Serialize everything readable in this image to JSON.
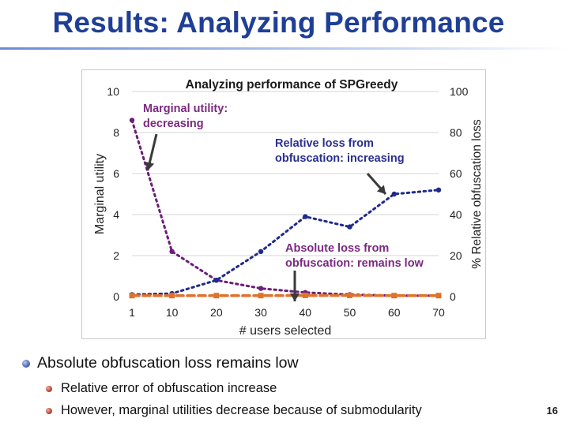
{
  "slide": {
    "title": "Results: Analyzing Performance",
    "bullets": [
      "Absolute obfuscation loss remains low",
      "Relative error of obfuscation increase",
      "However, marginal utilities decrease because of submodularity"
    ],
    "page_number": "16"
  },
  "colors": {
    "title": "#1f3f96",
    "marginal_utility": "#6b1e78",
    "relative_loss": "#1f2a8c",
    "absolute_loss": "#e0722b",
    "annotation_utility": "#7a2a7f",
    "annotation_loss": "#2a2f8f"
  },
  "chart_data": {
    "type": "line",
    "title": "Analyzing performance of SPGreedy",
    "xlabel": "# users selected",
    "ylabel_left": "Marginal utility",
    "ylabel_right": "% Relative obfuscation loss",
    "x_ticks": [
      "1",
      "10",
      "20",
      "30",
      "40",
      "50",
      "60",
      "70"
    ],
    "x": [
      1,
      10,
      20,
      30,
      40,
      50,
      60,
      70
    ],
    "y_left_range": [
      0,
      10
    ],
    "y_left_ticks": [
      "0",
      "2",
      "4",
      "6",
      "8",
      "10"
    ],
    "y_right_range": [
      0,
      100
    ],
    "y_right_ticks": [
      "0",
      "20",
      "40",
      "60",
      "80",
      "100"
    ],
    "grid": "horizontal",
    "series": [
      {
        "key": "marginal_utility",
        "axis": "left",
        "style": "dotted",
        "values": [
          8.6,
          2.2,
          0.8,
          0.4,
          0.2,
          0.1,
          0.05,
          0.05
        ]
      },
      {
        "key": "relative_loss",
        "axis": "right",
        "style": "dotted",
        "values": [
          1,
          1.5,
          8,
          22,
          39,
          34,
          50,
          52
        ]
      },
      {
        "key": "absolute_loss",
        "axis": "right",
        "style": "dashed",
        "values": [
          0.5,
          0.5,
          0.5,
          0.5,
          0.6,
          0.6,
          0.5,
          0.5
        ]
      }
    ],
    "annotations": [
      {
        "lines": [
          "Marginal utility:",
          "decreasing"
        ],
        "color_key": "annotation_utility"
      },
      {
        "lines": [
          "Relative loss from",
          "obfuscation: increasing"
        ],
        "color_key": "annotation_loss"
      },
      {
        "lines": [
          "Absolute loss from",
          "obfuscation: remains low"
        ],
        "color_key": "annotation_utility"
      }
    ]
  }
}
